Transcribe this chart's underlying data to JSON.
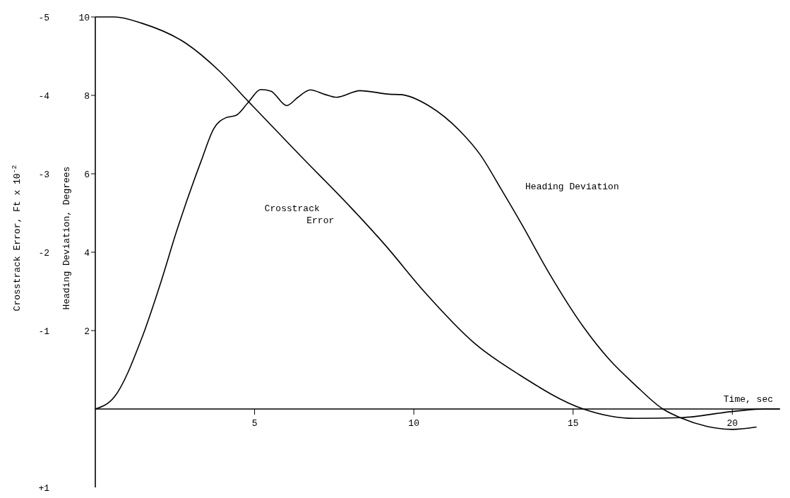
{
  "chart_data": {
    "type": "line",
    "xlabel": "Time, sec",
    "ylabel": "Heading Deviation, Degrees",
    "y2label": "Crosstrack Error, Ft x 10$^{-2}$",
    "xlim": [
      0,
      21.5
    ],
    "xticks": [
      5,
      10,
      15,
      20
    ],
    "ylim": [
      -2,
      10
    ],
    "yticks": [
      2,
      4,
      6,
      8,
      10
    ],
    "y2lim": [
      1,
      -5
    ],
    "y2ticks": [
      -5,
      -4,
      -3,
      -2,
      -1,
      {
        "value": 1,
        "label": "+1"
      }
    ],
    "grid": false,
    "legend": false,
    "marker": "none",
    "line_style": "solid",
    "series": [
      {
        "name": "Heading Deviation",
        "color": "#000000",
        "x": [
          0,
          0.6,
          1.46,
          2.08,
          2.55,
          3.33,
          3.72,
          4.1,
          4.42,
          4.81,
          5.19,
          5.51,
          6.01,
          6.36,
          6.75,
          7.22,
          7.57,
          8.31,
          9.24,
          9.59,
          10.48,
          11.45,
          12.09,
          12.74,
          13.39,
          14.23,
          15.32,
          16.13,
          16.94,
          17.82,
          18.39,
          19.19,
          20.0,
          20.76
        ],
        "values": [
          0,
          0.31,
          1.81,
          3.29,
          4.53,
          6.34,
          7.15,
          7.43,
          7.49,
          7.83,
          8.15,
          8.11,
          7.74,
          7.95,
          8.14,
          8.02,
          7.95,
          8.12,
          8.03,
          8.02,
          7.73,
          7.09,
          6.48,
          5.61,
          4.71,
          3.49,
          2.1,
          1.27,
          0.62,
          0,
          -0.23,
          -0.44,
          -0.52,
          -0.46
        ]
      },
      {
        "name": "Crosstrack Error",
        "color": "#000000",
        "axis": "y2",
        "x": [
          0,
          0.6,
          1.46,
          2.86,
          3.87,
          4.81,
          6.44,
          8.0,
          9.08,
          10.32,
          11.93,
          13.3,
          15.32,
          16.94,
          18.39,
          20.04,
          21.05,
          21.48
        ],
        "values": [
          -5.0,
          -5.0,
          -4.92,
          -4.66,
          -4.32,
          -3.92,
          -3.23,
          -2.58,
          -2.1,
          -1.5,
          -0.83,
          -0.44,
          0,
          0.12,
          0.11,
          0.03,
          0,
          0
        ]
      }
    ]
  }
}
